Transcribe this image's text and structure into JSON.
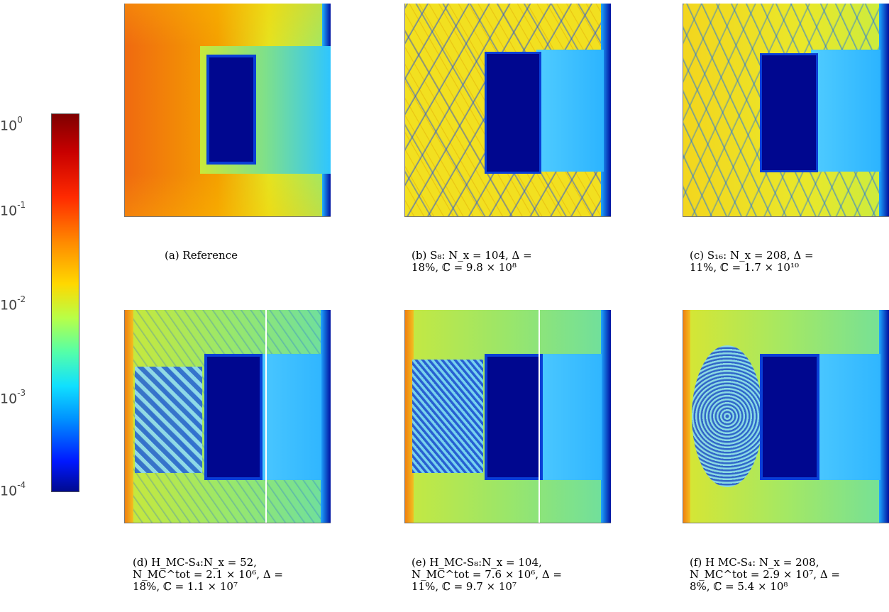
{
  "colorbar": {
    "ticks": [
      {
        "base": "10",
        "exp": "0"
      },
      {
        "base": "10",
        "exp": "-1"
      },
      {
        "base": "10",
        "exp": "-2"
      },
      {
        "base": "10",
        "exp": "-3"
      },
      {
        "base": "10",
        "exp": "-4"
      }
    ],
    "colors": [
      "#7f0000",
      "#ff2a00",
      "#ffd800",
      "#55ffa8",
      "#0090ff",
      "#000a8f"
    ],
    "scale": "log"
  },
  "panels": [
    {
      "id": "a",
      "caption": [
        "(a) Reference"
      ]
    },
    {
      "id": "b",
      "caption": [
        "(b) S₈: N_x = 104, Δ =",
        "18%, ℂ = 9.8 × 10⁸"
      ]
    },
    {
      "id": "c",
      "caption": [
        "(c) S₁₆: N_x = 208, Δ =",
        "11%, ℂ = 1.7 × 10¹⁰"
      ]
    },
    {
      "id": "d",
      "caption": [
        "(d) H_MC-S₄:N_x = 52,",
        "N_MC^tot = 2.1 × 10⁶, Δ =",
        "18%, ℂ = 1.1 × 10⁷"
      ]
    },
    {
      "id": "e",
      "caption": [
        "(e) H_MC-S₈:N_x = 104,",
        "N_MC^tot = 7.6 × 10⁶, Δ =",
        "11%, ℂ = 9.7 × 10⁷"
      ]
    },
    {
      "id": "f",
      "caption": [
        "(f) H MC-S₄: N_x = 208,",
        "N_MC^tot = 2.9 × 10⁷, Δ =",
        "8%, ℂ = 5.4 × 10⁸"
      ]
    }
  ]
}
